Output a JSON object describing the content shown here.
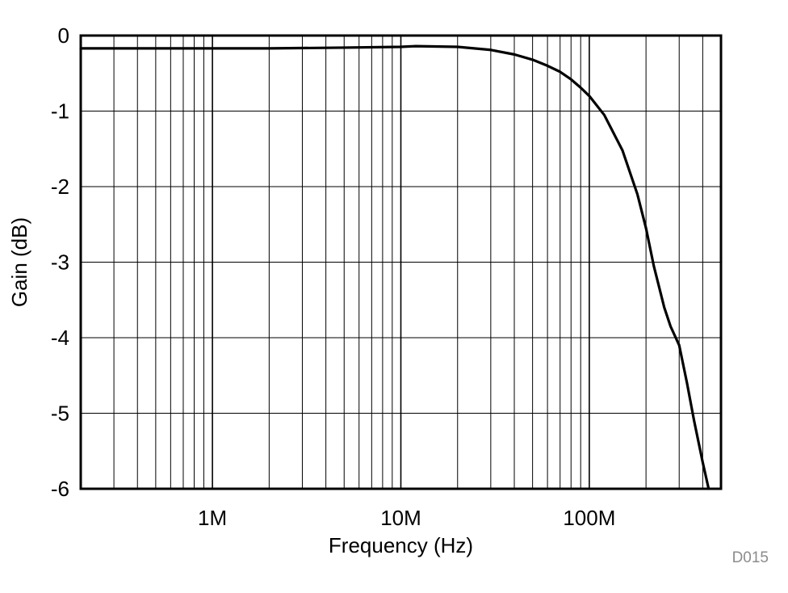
{
  "chart_data": {
    "type": "line",
    "xlabel": "Frequency (Hz)",
    "ylabel": "Gain (dB)",
    "x_scale": "log",
    "xlim": [
      200000,
      500000000
    ],
    "ylim": [
      -6,
      0
    ],
    "x_ticks": [
      {
        "value": 1000000,
        "label": "1M"
      },
      {
        "value": 10000000,
        "label": "10M"
      },
      {
        "value": 100000000,
        "label": "100M"
      }
    ],
    "y_ticks": [
      {
        "value": 0,
        "label": "0"
      },
      {
        "value": -1,
        "label": "-1"
      },
      {
        "value": -2,
        "label": "-2"
      },
      {
        "value": -3,
        "label": "-3"
      },
      {
        "value": -4,
        "label": "-4"
      },
      {
        "value": -5,
        "label": "-5"
      },
      {
        "value": -6,
        "label": "-6"
      }
    ],
    "grid": true,
    "figure_id": "D015",
    "series": [
      {
        "color": "#000000",
        "x": [
          200000,
          500000,
          1000000,
          2000000,
          5000000,
          10000000,
          12000000,
          20000000,
          30000000,
          40000000,
          50000000,
          60000000,
          70000000,
          80000000,
          90000000,
          100000000,
          120000000,
          150000000,
          180000000,
          200000000,
          220000000,
          250000000,
          270000000,
          300000000,
          330000000,
          360000000,
          400000000,
          430000000
        ],
        "y": [
          -0.17,
          -0.17,
          -0.17,
          -0.17,
          -0.16,
          -0.15,
          -0.14,
          -0.15,
          -0.19,
          -0.25,
          -0.32,
          -0.4,
          -0.48,
          -0.58,
          -0.69,
          -0.8,
          -1.05,
          -1.52,
          -2.1,
          -2.55,
          -3.05,
          -3.6,
          -3.85,
          -4.1,
          -4.6,
          -5.1,
          -5.65,
          -6.0
        ]
      }
    ]
  }
}
